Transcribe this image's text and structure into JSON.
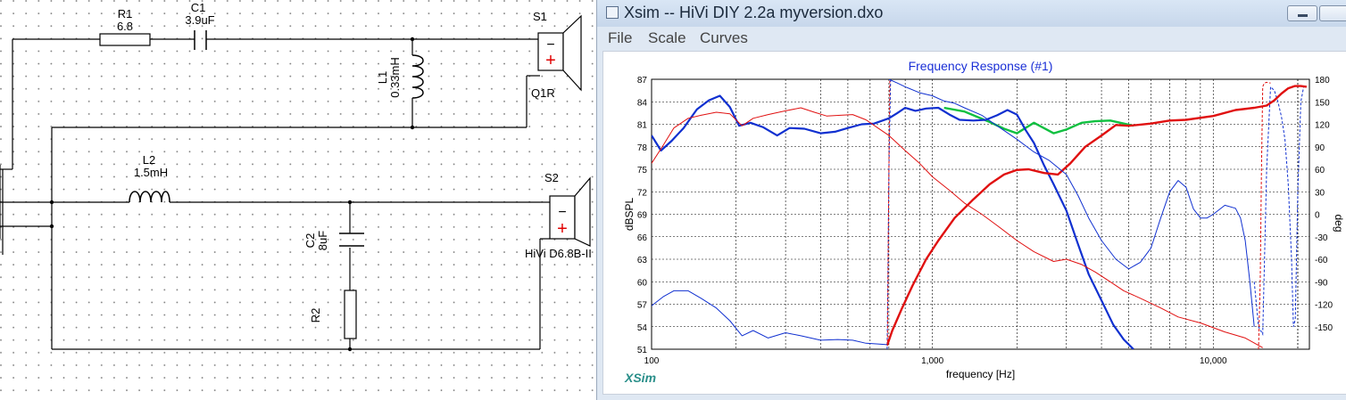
{
  "schematic": {
    "labels": {
      "r1_name": "R1",
      "r1_value": "6.8",
      "c1_name": "C1",
      "c1_value": "3.9uF",
      "l1_name": "L1",
      "l1_value": "0.33mH",
      "s1_name": "S1",
      "s1_driver": "Q1R",
      "l2_name": "L2",
      "l2_value": "1.5mH",
      "c2_name": "C2",
      "c2_value": "8uF",
      "r2_name": "R2",
      "s2_name": "S2",
      "s2_driver": "HiVi D6.8B-II"
    }
  },
  "window": {
    "title": "Xsim -- HiVi DIY 2.2a myversion.dxo",
    "menu": [
      "File",
      "Scale",
      "Curves"
    ]
  },
  "chart_data": {
    "type": "line",
    "title": "Frequency Response (#1)",
    "xlabel": "frequency [Hz]",
    "ylabel": "dBSPL",
    "y2label": "deg",
    "xscale": "log",
    "xlim": [
      100,
      22000
    ],
    "ylim": [
      51,
      87
    ],
    "y2lim": [
      -180,
      180
    ],
    "x_tick_labels": [
      "100",
      "1,000",
      "10,000"
    ],
    "y_ticks": [
      87,
      84,
      81,
      78,
      75,
      72,
      69,
      66,
      63,
      60,
      57,
      54,
      51
    ],
    "y2_ticks": [
      180,
      150,
      120,
      90,
      60,
      30,
      0,
      -30,
      -60,
      -90,
      -120,
      -150
    ],
    "grid": true,
    "watermark": "XSim",
    "colors": {
      "red": "#e01010",
      "blue": "#1030d0",
      "green": "#10c040"
    },
    "series": [
      {
        "color": "green",
        "width": 2.4,
        "style": "solid",
        "axis": "left",
        "x": [
          1100,
          1300,
          1600,
          1800,
          2000,
          2300,
          2700,
          3000,
          3400,
          3800,
          4300,
          4800,
          5200
        ],
        "y": [
          83.2,
          82.7,
          81.3,
          80.4,
          79.8,
          81.2,
          79.8,
          80.3,
          81.2,
          81.4,
          81.5,
          81.1,
          80.8
        ]
      },
      {
        "color": "blue",
        "width": 2.2,
        "style": "solid",
        "axis": "left",
        "x": [
          100,
          108,
          118,
          130,
          145,
          160,
          175,
          190,
          205,
          225,
          250,
          280,
          310,
          350,
          400,
          450,
          500,
          560,
          620,
          700,
          750,
          800,
          870,
          950,
          1050,
          1150,
          1250,
          1400,
          1550,
          1700,
          1850,
          2000,
          2150,
          2300,
          2500,
          2700,
          3000,
          3300,
          3600,
          4000,
          4400,
          4800,
          5200
        ],
        "y": [
          79.5,
          77.5,
          78.8,
          80.5,
          83,
          84.2,
          84.8,
          83.3,
          80.8,
          81.2,
          80.6,
          79.5,
          80.5,
          80.4,
          79.8,
          80,
          80.5,
          81,
          81.1,
          81.8,
          82.5,
          83.2,
          82.8,
          83.1,
          83.2,
          82.3,
          81.6,
          81.5,
          81.6,
          82.2,
          82.9,
          82.3,
          80.2,
          78.5,
          75.5,
          73,
          69.5,
          65,
          61,
          57.5,
          54.3,
          52.3,
          51
        ]
      },
      {
        "color": "red",
        "width": 2.4,
        "style": "solid",
        "axis": "left",
        "x": [
          690,
          720,
          780,
          850,
          950,
          1050,
          1200,
          1400,
          1600,
          1800,
          2000,
          2200,
          2500,
          2800,
          3100,
          3500,
          4000,
          4500,
          5000,
          6000,
          7000,
          8000,
          10000,
          12000,
          14000,
          15500,
          16500,
          17500,
          18500,
          19500,
          20500,
          21500
        ],
        "y": [
          51.5,
          53.5,
          56.5,
          59.5,
          63,
          65.5,
          68.5,
          71,
          73,
          74.3,
          74.9,
          75,
          74.5,
          74.3,
          75.8,
          78,
          79.5,
          80.9,
          80.8,
          81.1,
          81.5,
          81.6,
          82.1,
          82.9,
          83.2,
          83.5,
          84.2,
          85.1,
          85.8,
          86.1,
          86.1,
          86
        ]
      },
      {
        "color": "red",
        "width": 1,
        "style": "solid",
        "axis": "left",
        "x": [
          100,
          110,
          120,
          135,
          150,
          170,
          190,
          210,
          230,
          260,
          300,
          340,
          380,
          420,
          470,
          520,
          580,
          640,
          700,
          800,
          900,
          1000,
          1150,
          1300,
          1500,
          1700,
          2000,
          2300,
          2700,
          3000,
          3400,
          3800,
          4300,
          4800,
          5500,
          6500,
          7500,
          9000,
          11000,
          13000,
          15000
        ],
        "y": [
          75.8,
          78.2,
          80.5,
          81.8,
          82.2,
          82.6,
          82.4,
          80.8,
          81.8,
          82.3,
          82.8,
          83.2,
          82.6,
          82.1,
          82.2,
          82.3,
          81.6,
          80.5,
          79.5,
          77.5,
          75.8,
          74,
          72.2,
          70.5,
          69,
          67.5,
          65.5,
          64,
          62.7,
          63,
          62.3,
          61.3,
          60,
          58.8,
          57.8,
          56.5,
          55.3,
          54.5,
          53.3,
          52.5,
          51.2
        ]
      },
      {
        "color": "blue",
        "width": 1,
        "style": "solid",
        "axis": "left",
        "x": [
          100,
          110,
          120,
          135,
          150,
          170,
          190,
          210,
          230,
          260,
          300,
          340,
          400,
          460,
          520,
          580,
          640,
          690
        ],
        "y": [
          56.8,
          58,
          58.8,
          58.8,
          57.8,
          56.5,
          54.8,
          52.8,
          53.5,
          52.5,
          53.2,
          52.8,
          52.2,
          52.3,
          52.2,
          51.8,
          51.7,
          51.6
        ]
      },
      {
        "color": "blue",
        "width": 1,
        "style": "solid",
        "axis": "left",
        "x": [
          700,
          750,
          800,
          900,
          1000,
          1100,
          1200,
          1300,
          1500,
          1700,
          2000,
          2300,
          2600,
          3000,
          3300,
          3600,
          4000,
          4500,
          5000,
          5500,
          6000,
          6500,
          7000,
          7500,
          8000,
          8500,
          9000,
          9500,
          10000,
          11000,
          12000,
          12500,
          13000,
          13500,
          14000
        ],
        "y": [
          87,
          86.5,
          86,
          85.2,
          84.8,
          84.1,
          83.8,
          83.2,
          82.2,
          80.8,
          79,
          77.3,
          76.2,
          74.3,
          71.5,
          68.5,
          65.5,
          63,
          61.7,
          62.6,
          64.5,
          68.5,
          72,
          73.5,
          72.6,
          69.7,
          68.5,
          68.5,
          69,
          70.2,
          69.8,
          68.5,
          65.5,
          60,
          54
        ]
      }
    ],
    "dashed": [
      {
        "color": "blue",
        "x": [
          690,
          695,
          700,
          710
        ],
        "y": [
          51,
          62,
          75,
          87
        ]
      },
      {
        "color": "red",
        "x": [
          692,
          698,
          705
        ],
        "y": [
          52,
          70,
          87
        ]
      },
      {
        "color": "blue",
        "x": [
          14000,
          14500,
          15000,
          15500,
          16000,
          16500,
          17000,
          17500,
          18000,
          18500,
          19000,
          19300,
          19600,
          20000,
          20500,
          21000,
          21500
        ],
        "y": [
          60,
          54,
          53,
          75,
          86,
          85.5,
          84,
          82,
          79,
          73,
          63,
          54,
          55,
          72,
          84,
          86,
          86
        ]
      },
      {
        "color": "red",
        "x": [
          14500,
          14700,
          14850,
          15000,
          15200,
          15500,
          16000
        ],
        "y": [
          51,
          60,
          75,
          86,
          86.5,
          86.6,
          86.5
        ]
      }
    ]
  }
}
